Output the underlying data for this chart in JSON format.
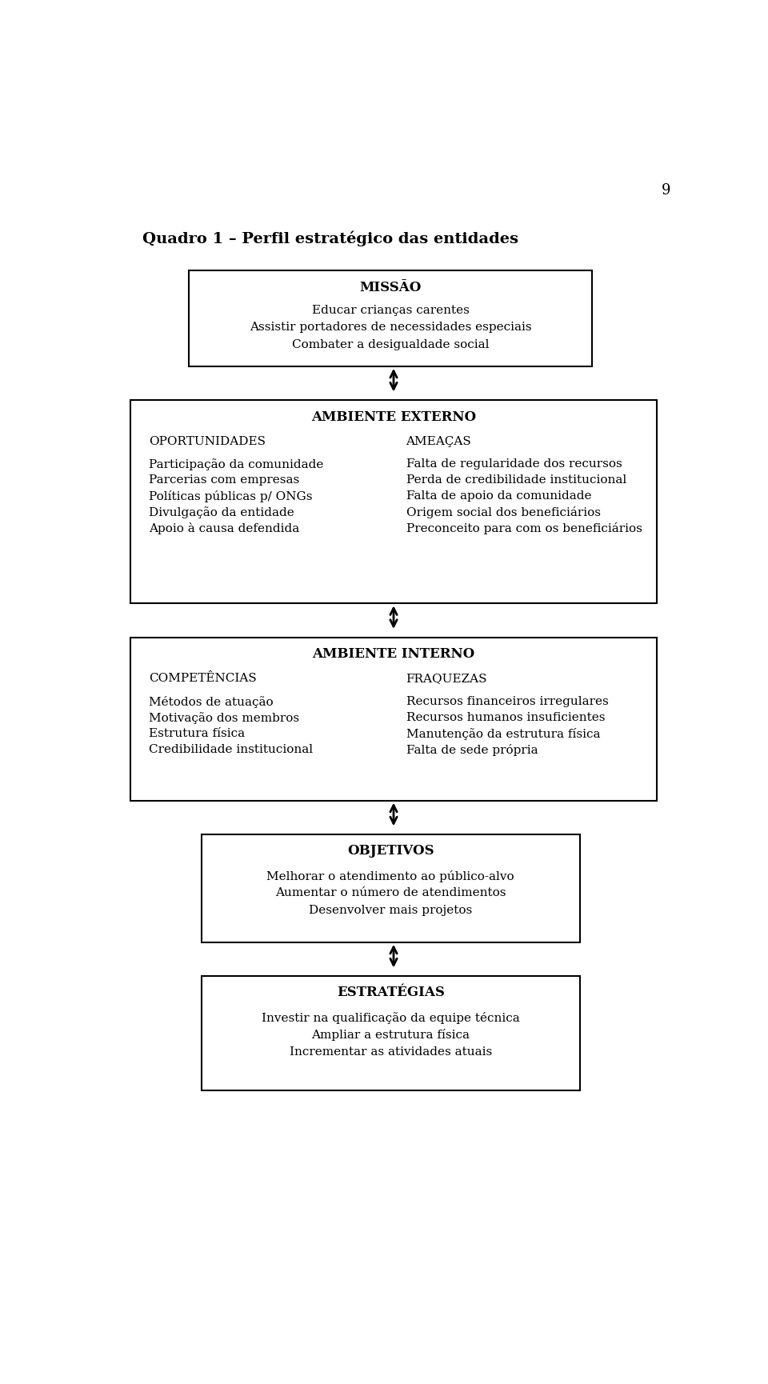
{
  "page_number": "9",
  "main_title": "Quadro 1 – Perfil estratégico das entidades",
  "missao_title": "MISSÃO",
  "missao_items": [
    "Educar crianças carentes",
    "Assistir portadores de necessidades especiais",
    "Combater a desigualdade social"
  ],
  "externo_title": "AMBIENTE EXTERNO",
  "oportunidades_title": "OPORTUNIDADES",
  "oportunidades_items": [
    "Participação da comunidade",
    "Parcerias com empresas",
    "Políticas públicas p/ ONGs",
    "Divulgação da entidade",
    "Apoio à causa defendida"
  ],
  "ameacas_title": "AMEAÇAS",
  "ameacas_items": [
    "Falta de regularidade dos recursos",
    "Perda de credibilidade institucional",
    "Falta de apoio da comunidade",
    "Origem social dos beneficiários",
    "Preconceito para com os beneficiários"
  ],
  "interno_title": "AMBIENTE INTERNO",
  "competencias_title": "COMPETÊNCIAS",
  "competencias_items": [
    "Métodos de atuação",
    "Motivação dos membros",
    "Estrutura física",
    "Credibilidade institucional"
  ],
  "fraquezas_title": "FRAQUEZAS",
  "fraquezas_items": [
    "Recursos financeiros irregulares",
    "Recursos humanos insuficientes",
    "Manutenção da estrutura física",
    "Falta de sede própria"
  ],
  "objetivos_title": "OBJETIVOS",
  "objetivos_items": [
    "Melhorar o atendimento ao público-alvo",
    "Aumentar o número de atendimentos",
    "Desenvolver mais projetos"
  ],
  "estrategias_title": "ESTRATÉGIAS",
  "estrategias_items": [
    "Investir na qualificação da equipe técnica",
    "Ampliar a estrutura física",
    "Incrementar as atividades atuais"
  ],
  "bg_color": "#ffffff",
  "text_color": "#000000",
  "box_edge_color": "#000000",
  "title_fontsize": 14,
  "header_fontsize": 11,
  "body_fontsize": 11,
  "page_num_fontsize": 13
}
